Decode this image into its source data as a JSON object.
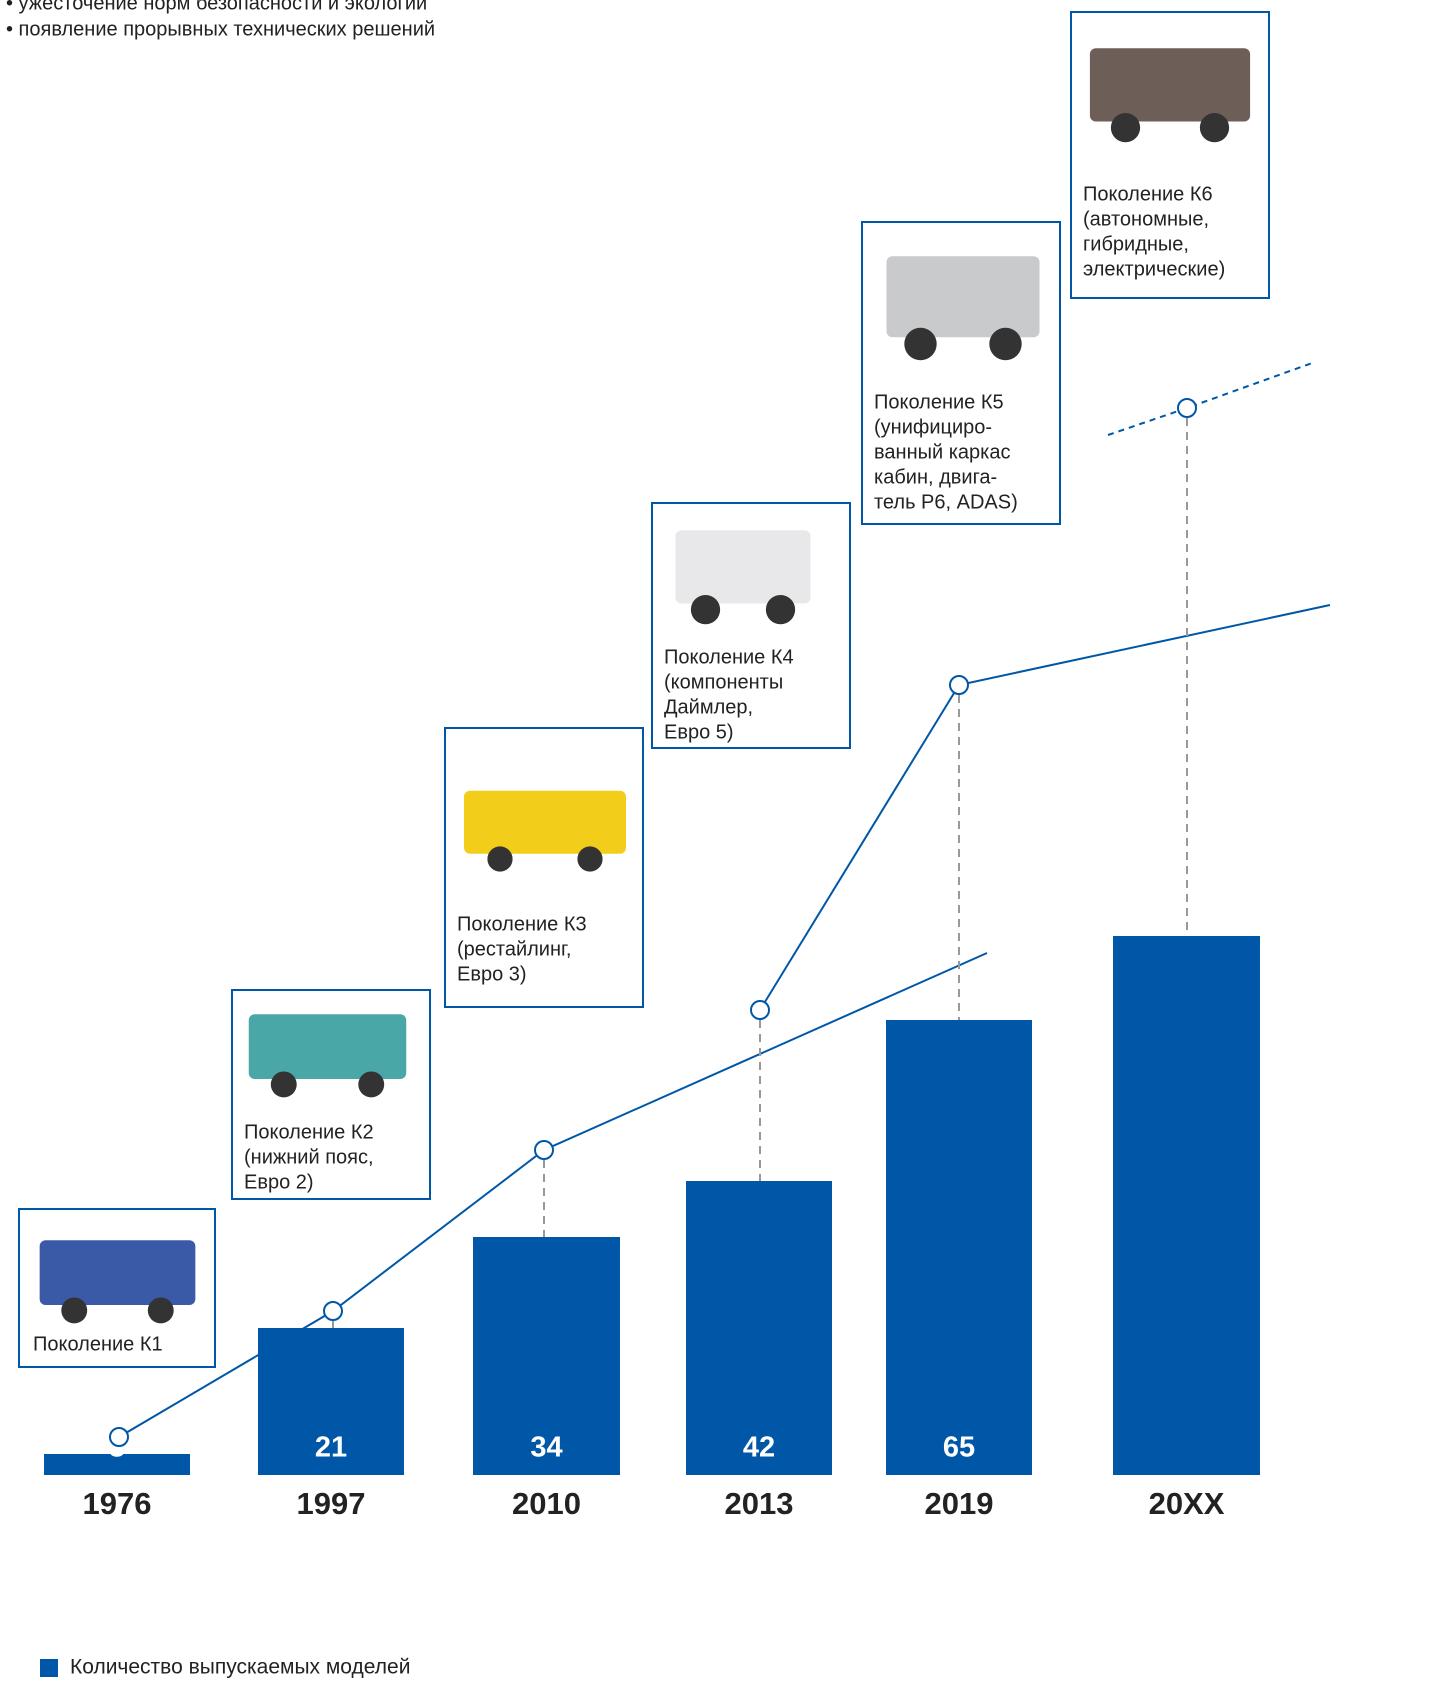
{
  "bullets": [
    "• ужесточение норм безопасности и экологии",
    "• появление прорывных технических решений"
  ],
  "generations": [
    [
      "Поколение К1"
    ],
    [
      "Поколение К2",
      "(нижний пояс,",
      "Евро 2)"
    ],
    [
      "Поколение К3",
      "(рестайлинг,",
      "Евро 3)"
    ],
    [
      "Поколение К4",
      "(компоненты",
      "Даймлер,",
      "Евро 5)"
    ],
    [
      "Поколение К5",
      "(унифициро-",
      "ванный каркас",
      "кабин, двига-",
      "тель Р6, ADAS)"
    ],
    [
      "Поколение К6",
      "(автономные,",
      "гибридные,",
      "электрические)"
    ]
  ],
  "chart_data": {
    "type": "bar",
    "categories": [
      "1976",
      "1997",
      "2010",
      "2013",
      "2019",
      "20XX"
    ],
    "series": [
      {
        "name": "Количество выпускаемых моделей",
        "color": "#0057a8",
        "values": [
          3,
          21,
          34,
          42,
          65,
          77
        ]
      }
    ],
    "value_labels": [
      "3",
      "21",
      "34",
      "42",
      "65",
      null
    ],
    "ylim": [
      0,
      80
    ]
  }
}
